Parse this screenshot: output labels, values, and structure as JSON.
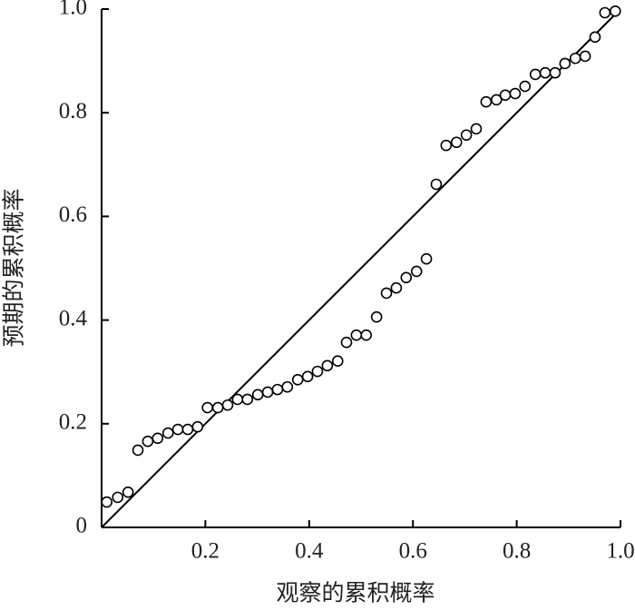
{
  "chart_data": {
    "type": "scatter",
    "x_label": "观察的累积概率",
    "y_label": "预期的累积概率",
    "xlim": [
      0,
      1
    ],
    "ylim": [
      0,
      1
    ],
    "xticks": [
      0.2,
      0.4,
      0.6,
      0.8,
      {
        "value": 1,
        "label": "1.0"
      }
    ],
    "yticks": [
      0,
      0.2,
      0.4,
      0.6,
      0.8,
      {
        "value": 1,
        "label": "1.0"
      }
    ],
    "color": "#000000",
    "x": [
      0.01,
      0.031,
      0.051,
      0.07,
      0.089,
      0.108,
      0.128,
      0.147,
      0.166,
      0.185,
      0.204,
      0.224,
      0.243,
      0.262,
      0.281,
      0.301,
      0.32,
      0.339,
      0.358,
      0.378,
      0.397,
      0.416,
      0.435,
      0.455,
      0.472,
      0.491,
      0.51,
      0.53,
      0.549,
      0.568,
      0.587,
      0.607,
      0.626,
      0.645,
      0.664,
      0.684,
      0.703,
      0.722,
      0.741,
      0.761,
      0.778,
      0.797,
      0.816,
      0.836,
      0.855,
      0.874,
      0.893,
      0.913,
      0.932,
      0.951,
      0.97,
      0.99
    ],
    "values": [
      0.049,
      0.058,
      0.068,
      0.149,
      0.166,
      0.172,
      0.182,
      0.189,
      0.189,
      0.194,
      0.231,
      0.231,
      0.236,
      0.247,
      0.247,
      0.256,
      0.261,
      0.266,
      0.271,
      0.285,
      0.291,
      0.301,
      0.312,
      0.321,
      0.357,
      0.371,
      0.371,
      0.406,
      0.452,
      0.462,
      0.482,
      0.494,
      0.518,
      0.662,
      0.737,
      0.743,
      0.757,
      0.769,
      0.821,
      0.825,
      0.834,
      0.837,
      0.851,
      0.874,
      0.877,
      0.877,
      0.895,
      0.905,
      0.909,
      0.946,
      0.993,
      0.996
    ]
  }
}
